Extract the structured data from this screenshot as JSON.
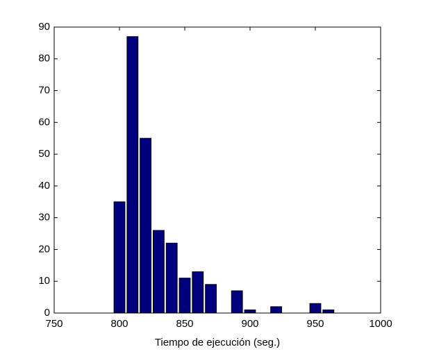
{
  "chart_data": {
    "type": "bar",
    "x_label": "Tiempo de ejecución (seg.)",
    "x": [
      800,
      810,
      820,
      830,
      840,
      850,
      860,
      870,
      880,
      890,
      900,
      910,
      920,
      930,
      940,
      950,
      960
    ],
    "values": [
      35,
      87,
      55,
      26,
      22,
      11,
      13,
      9,
      0,
      7,
      1,
      0,
      2,
      0,
      0,
      3,
      1
    ],
    "color": "#00007f",
    "xlim": [
      750,
      1000
    ],
    "xticks": [
      750,
      800,
      850,
      900,
      950,
      1000
    ],
    "ylim": [
      0,
      90
    ],
    "yticks": [
      0,
      10,
      20,
      30,
      40,
      50,
      60,
      70,
      80,
      90
    ],
    "grid": false
  }
}
